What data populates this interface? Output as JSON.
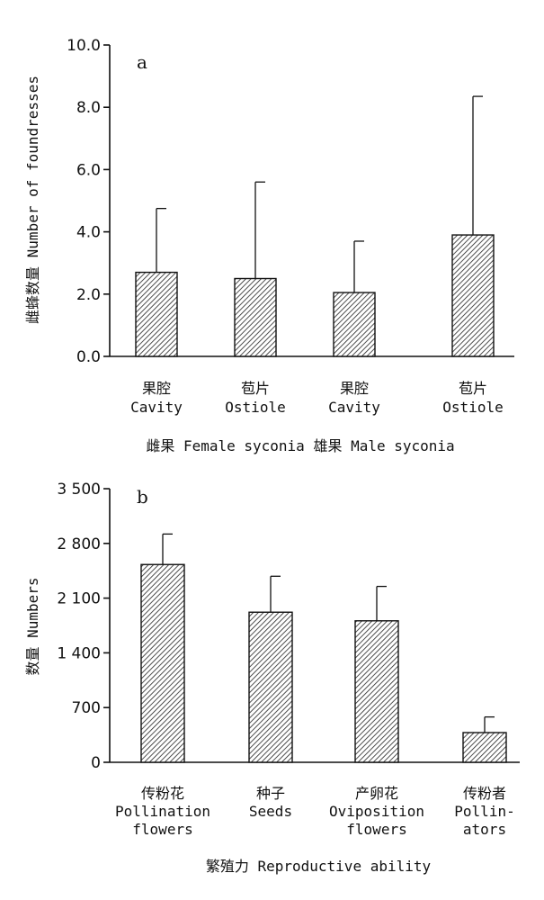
{
  "chart_data": [
    {
      "type": "bar",
      "panel_label": "a",
      "ylabel": "雌蜂数量 Number of foundresses",
      "ylim": [
        0,
        10
      ],
      "y_ticks": [
        0,
        2,
        4,
        6,
        8,
        10
      ],
      "y_tick_labels": [
        "0.0",
        "2.0",
        "4.0",
        "6.0",
        "8.0",
        "10.0"
      ],
      "categories": [
        {
          "line1": "果腔",
          "line2": "Cavity"
        },
        {
          "line1": "苞片",
          "line2": "Ostiole"
        },
        {
          "line1": "果腔",
          "line2": "Cavity"
        },
        {
          "line1": "苞片",
          "line2": "Ostiole"
        }
      ],
      "values": [
        2.7,
        2.5,
        2.05,
        3.9
      ],
      "error_upper": [
        4.75,
        5.6,
        3.7,
        8.35
      ],
      "group_label": "雌果 Female syconia 雄果 Male syconia"
    },
    {
      "type": "bar",
      "panel_label": "b",
      "ylabel": "数量 Numbers",
      "ylim": [
        0,
        3500
      ],
      "y_ticks": [
        0,
        700,
        1400,
        2100,
        2800,
        3500
      ],
      "y_tick_labels": [
        "0",
        "700",
        "1 400",
        "2 100",
        "2 800",
        "3 500"
      ],
      "categories": [
        {
          "line1": "传粉花",
          "line2": "Pollination",
          "line3": "flowers"
        },
        {
          "line1": "种子",
          "line2": "Seeds"
        },
        {
          "line1": "产卵花",
          "line2": "Oviposition",
          "line3": "flowers"
        },
        {
          "line1": "传粉者",
          "line2": "Pollin-",
          "line3": "ators"
        }
      ],
      "values": [
        2530,
        1920,
        1810,
        380
      ],
      "error_upper": [
        2920,
        2380,
        2250,
        580
      ],
      "xlabel": "繁殖力 Reproductive ability"
    }
  ]
}
